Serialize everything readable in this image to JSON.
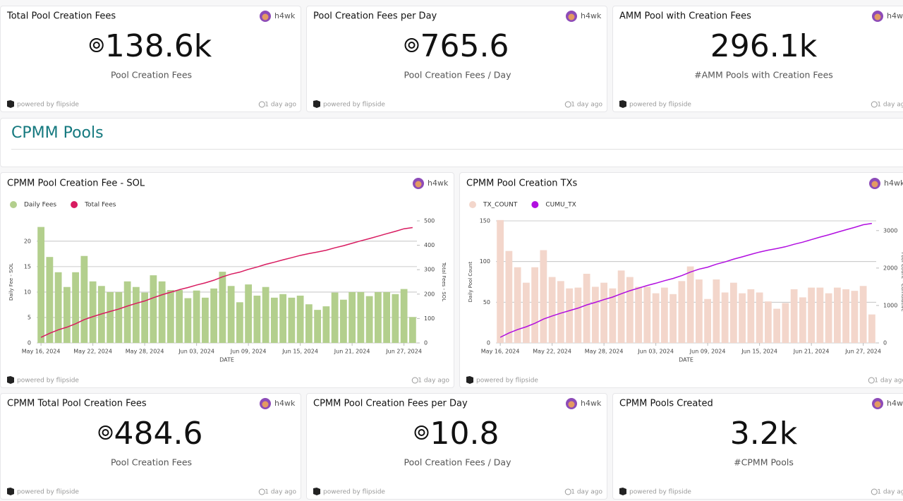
{
  "author": "h4wk",
  "powered_by": "powered by flipside",
  "updated": "1 day ago",
  "section": {
    "title": "CPMM Pools"
  },
  "cards": [
    {
      "title": "Total Pool Creation Fees",
      "value": "138.6k",
      "sol": true,
      "subtitle": "Pool Creation Fees"
    },
    {
      "title": "Pool Creation Fees per Day",
      "value": "765.6",
      "sol": true,
      "subtitle": "Pool Creation Fees / Day"
    },
    {
      "title": "AMM Pool with Creation Fees",
      "value": "296.1k",
      "sol": false,
      "subtitle": "#AMM Pools with Creation Fees"
    },
    {
      "title": "CPMM Total Pool Creation Fees",
      "value": "484.6",
      "sol": true,
      "subtitle": "Pool Creation Fees"
    },
    {
      "title": "CPMM Pool Creation Fees per Day",
      "value": "10.8",
      "sol": true,
      "subtitle": "Pool Creation Fees / Day"
    },
    {
      "title": "CPMM Pools Created",
      "value": "3.2k",
      "sol": false,
      "subtitle": "#CPMM Pools"
    }
  ],
  "chart_data": [
    {
      "type": "bar",
      "title": "CPMM Pool Creation Fee - SOL",
      "x_label": "DATE",
      "y_label": "Daily Fee - SOL",
      "y2_label": "Total Fees - SOL",
      "x": [
        "2024-05-16",
        "2024-05-17",
        "2024-05-18",
        "2024-05-19",
        "2024-05-20",
        "2024-05-21",
        "2024-05-22",
        "2024-05-23",
        "2024-05-24",
        "2024-05-25",
        "2024-05-26",
        "2024-05-27",
        "2024-05-28",
        "2024-05-29",
        "2024-05-30",
        "2024-05-31",
        "2024-06-01",
        "2024-06-02",
        "2024-06-03",
        "2024-06-04",
        "2024-06-05",
        "2024-06-06",
        "2024-06-07",
        "2024-06-08",
        "2024-06-09",
        "2024-06-10",
        "2024-06-11",
        "2024-06-12",
        "2024-06-13",
        "2024-06-14",
        "2024-06-15",
        "2024-06-16",
        "2024-06-17",
        "2024-06-18",
        "2024-06-19",
        "2024-06-20",
        "2024-06-21",
        "2024-06-22",
        "2024-06-23",
        "2024-06-24",
        "2024-06-25",
        "2024-06-26",
        "2024-06-27",
        "2024-06-28"
      ],
      "xticks": [
        {
          "value": "2024-05-16",
          "label": "May 16, 2024"
        },
        {
          "value": "2024-05-22",
          "label": "May 22, 2024"
        },
        {
          "value": "2024-05-28",
          "label": "May 28, 2024"
        },
        {
          "value": "2024-06-03",
          "label": "Jun 03, 2024"
        },
        {
          "value": "2024-06-09",
          "label": "Jun 09, 2024"
        },
        {
          "value": "2024-06-15",
          "label": "Jun 15, 2024"
        },
        {
          "value": "2024-06-21",
          "label": "Jun 21, 2024"
        },
        {
          "value": "2024-06-27",
          "label": "Jun 27, 2024"
        }
      ],
      "ylim": [
        0,
        24
      ],
      "yticks": [
        0,
        5,
        10,
        15,
        20
      ],
      "y2lim": [
        0,
        500
      ],
      "y2ticks": [
        0,
        100,
        200,
        300,
        400,
        500
      ],
      "grid": true,
      "series": [
        {
          "name": "Daily Fees",
          "type": "bar",
          "color": "#b3cf8d",
          "values": [
            22.8,
            16.9,
            13.9,
            11,
            13.9,
            17.1,
            12.1,
            11.2,
            10,
            10,
            12.1,
            11,
            9.9,
            13.3,
            12.1,
            10.4,
            10.4,
            8.8,
            10.3,
            8.9,
            10.7,
            14,
            11.2,
            8,
            11.5,
            9.3,
            11,
            8.9,
            9.6,
            8.9,
            9.3,
            7.6,
            6.5,
            7.2,
            9.9,
            8.5,
            10,
            10,
            9.2,
            10,
            10,
            9.6,
            10.6,
            5.1
          ]
        },
        {
          "name": "Total Fees",
          "type": "line",
          "axis": "y2",
          "color": "#d81b60",
          "values": [
            22.8,
            39.7,
            53.6,
            64.6,
            78.5,
            95.6,
            107.7,
            118.9,
            128.9,
            138.9,
            151,
            162,
            171.9,
            185.2,
            197.3,
            207.7,
            218.1,
            226.9,
            237.2,
            246.1,
            256.8,
            270.8,
            282,
            290,
            301.5,
            310.8,
            321.8,
            330.7,
            340.3,
            349.2,
            358.5,
            366.1,
            372.6,
            379.8,
            389.7,
            398.2,
            408.2,
            418.2,
            427.4,
            437.4,
            447.4,
            457,
            467.6,
            472.7
          ]
        }
      ]
    },
    {
      "type": "bar",
      "title": "CPMM Pool Creation TXs",
      "x_label": "DATE",
      "y_label": "Daily Pool Count",
      "y2_label": "Pool Count - Cumulative",
      "x": [
        "2024-05-16",
        "2024-05-17",
        "2024-05-18",
        "2024-05-19",
        "2024-05-20",
        "2024-05-21",
        "2024-05-22",
        "2024-05-23",
        "2024-05-24",
        "2024-05-25",
        "2024-05-26",
        "2024-05-27",
        "2024-05-28",
        "2024-05-29",
        "2024-05-30",
        "2024-05-31",
        "2024-06-01",
        "2024-06-02",
        "2024-06-03",
        "2024-06-04",
        "2024-06-05",
        "2024-06-06",
        "2024-06-07",
        "2024-06-08",
        "2024-06-09",
        "2024-06-10",
        "2024-06-11",
        "2024-06-12",
        "2024-06-13",
        "2024-06-14",
        "2024-06-15",
        "2024-06-16",
        "2024-06-17",
        "2024-06-18",
        "2024-06-19",
        "2024-06-20",
        "2024-06-21",
        "2024-06-22",
        "2024-06-23",
        "2024-06-24",
        "2024-06-25",
        "2024-06-26",
        "2024-06-27",
        "2024-06-28"
      ],
      "xticks": [
        {
          "value": "2024-05-16",
          "label": "May 16, 2024"
        },
        {
          "value": "2024-05-22",
          "label": "May 22, 2024"
        },
        {
          "value": "2024-05-28",
          "label": "May 28, 2024"
        },
        {
          "value": "2024-06-03",
          "label": "Jun 03, 2024"
        },
        {
          "value": "2024-06-09",
          "label": "Jun 09, 2024"
        },
        {
          "value": "2024-06-15",
          "label": "Jun 15, 2024"
        },
        {
          "value": "2024-06-21",
          "label": "Jun 21, 2024"
        },
        {
          "value": "2024-06-27",
          "label": "Jun 27, 2024"
        }
      ],
      "ylim": [
        0,
        150
      ],
      "yticks": [
        0,
        50,
        100,
        150
      ],
      "y2lim": [
        0,
        3260
      ],
      "y2ticks": [
        0,
        1000,
        2000,
        3000
      ],
      "grid": true,
      "series": [
        {
          "name": "TX_COUNT",
          "type": "bar",
          "color": "#f3d6cb",
          "values": [
            151,
            113,
            93,
            74,
            93,
            114,
            81,
            76,
            67,
            68,
            85,
            69,
            74,
            67,
            89,
            81,
            69,
            69,
            61,
            68,
            60,
            76,
            94,
            78,
            54,
            78,
            62,
            74,
            61,
            66,
            62,
            51,
            42,
            49,
            66,
            56,
            68,
            68,
            61,
            68,
            66,
            64,
            70,
            35
          ]
        },
        {
          "name": "CUMU_TX",
          "type": "line",
          "axis": "y2",
          "color": "#b10ee0",
          "values": [
            151,
            264,
            357,
            431,
            524,
            638,
            719,
            795,
            862,
            930,
            1015,
            1084,
            1158,
            1225,
            1314,
            1395,
            1464,
            1533,
            1594,
            1662,
            1722,
            1798,
            1892,
            1970,
            2024,
            2102,
            2164,
            2238,
            2299,
            2365,
            2427,
            2478,
            2520,
            2569,
            2635,
            2691,
            2759,
            2827,
            2888,
            2956,
            3022,
            3086,
            3156,
            3191
          ]
        }
      ]
    }
  ]
}
